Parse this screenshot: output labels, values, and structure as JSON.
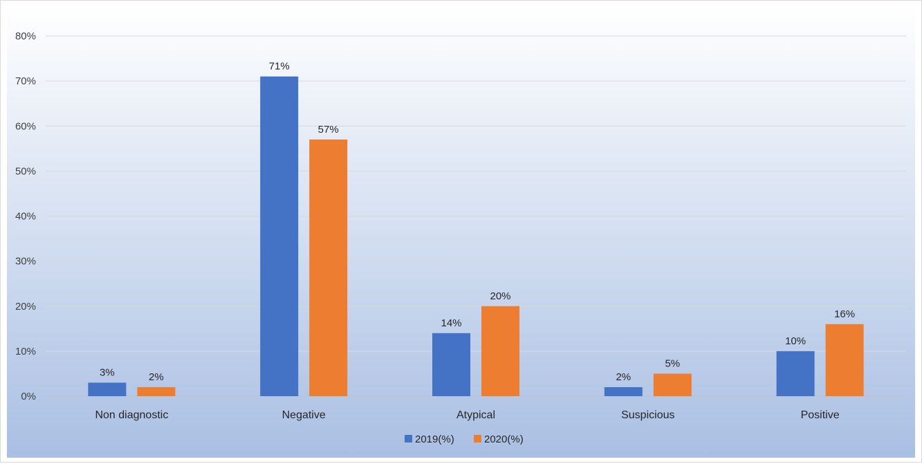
{
  "chart_data": {
    "type": "bar",
    "title": "",
    "xlabel": "",
    "ylabel": "",
    "categories": [
      "Non diagnostic",
      "Negative",
      "Atypical",
      "Suspicious",
      "Positive"
    ],
    "series": [
      {
        "name": "2019(%)",
        "color": "#4472C4",
        "values": [
          3,
          71,
          14,
          2,
          10
        ],
        "labels": [
          "3%",
          "71%",
          "14%",
          "2%",
          "10%"
        ]
      },
      {
        "name": "2020(%)",
        "color": "#ED7D31",
        "values": [
          2,
          57,
          20,
          5,
          16
        ],
        "labels": [
          "2%",
          "57%",
          "20%",
          "5%",
          "16%"
        ]
      }
    ],
    "ylim": [
      0,
      80
    ],
    "yticks": [
      0,
      10,
      20,
      30,
      40,
      50,
      60,
      70,
      80
    ],
    "ytick_labels": [
      "0%",
      "10%",
      "20%",
      "30%",
      "40%",
      "50%",
      "60%",
      "70%",
      "80%"
    ],
    "grid": true,
    "legend_position": "bottom",
    "background_gradient": [
      "#FFFFFF",
      "#A9BFE3"
    ]
  }
}
